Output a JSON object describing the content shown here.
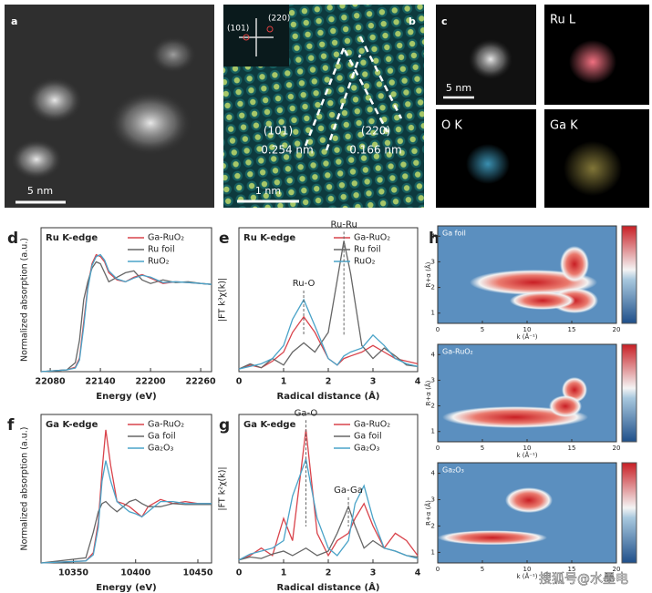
{
  "images": [
    {
      "label": "a",
      "scale_bar": "5 nm"
    },
    {
      "label": "b",
      "scale_bar": "1 nm",
      "fft_spots": [
        "(101)",
        "(220)"
      ],
      "planes": [
        {
          "index": "(101)",
          "spacing": "0.254 nm"
        },
        {
          "index": "(220)",
          "spacing": "0.166 nm"
        }
      ]
    },
    {
      "label": "c",
      "scale_bar": "5 nm",
      "maps": [
        "Ru L",
        "O K",
        "Ga K"
      ]
    }
  ],
  "chart_data": [
    {
      "label": "d",
      "type": "line",
      "title": "Ru K-edge",
      "xlabel": "Energy (eV)",
      "ylabel": "Normalized absorption (a.u.)",
      "xlim": [
        22069,
        22273
      ],
      "xticks": [
        22080,
        22140,
        22200,
        22260
      ],
      "ylim": [
        0,
        1.6
      ],
      "x": [
        22069,
        22100,
        22110,
        22115,
        22120,
        22125,
        22130,
        22135,
        22140,
        22145,
        22150,
        22160,
        22170,
        22180,
        22190,
        22200,
        22215,
        22230,
        22245,
        22260,
        22273
      ],
      "series": [
        {
          "name": "Ga-RuO₂",
          "color": "#d9434b",
          "values": [
            0.0,
            0.02,
            0.05,
            0.15,
            0.55,
            0.95,
            1.2,
            1.3,
            1.28,
            1.22,
            1.1,
            1.02,
            1.0,
            1.05,
            1.08,
            1.04,
            0.98,
            1.0,
            0.99,
            0.98,
            0.97
          ]
        },
        {
          "name": "Ru foil",
          "color": "#666666",
          "values": [
            0.0,
            0.02,
            0.1,
            0.35,
            0.8,
            1.0,
            1.15,
            1.22,
            1.2,
            1.1,
            1.0,
            1.05,
            1.1,
            1.12,
            1.02,
            0.98,
            1.02,
            0.99,
            1.0,
            0.98,
            0.97
          ]
        },
        {
          "name": "RuO₂",
          "color": "#4aa3c8",
          "values": [
            0.0,
            0.02,
            0.04,
            0.13,
            0.5,
            0.92,
            1.18,
            1.28,
            1.3,
            1.24,
            1.12,
            1.03,
            1.0,
            1.04,
            1.07,
            1.05,
            0.99,
            1.0,
            0.99,
            0.98,
            0.97
          ]
        }
      ]
    },
    {
      "label": "e",
      "type": "line",
      "title": "Ru K-edge",
      "xlabel": "Radical distance (Å)",
      "ylabel": "|FT k³χ(k)|",
      "xlim": [
        0,
        4
      ],
      "xticks": [
        0,
        1,
        2,
        3,
        4
      ],
      "ylim": [
        0,
        1.1
      ],
      "x": [
        0,
        0.25,
        0.5,
        0.75,
        1,
        1.2,
        1.45,
        1.7,
        2,
        2.2,
        2.35,
        2.5,
        2.75,
        3,
        3.25,
        3.5,
        3.75,
        4
      ],
      "series": [
        {
          "name": "Ga-RuO₂",
          "color": "#d9434b",
          "values": [
            0.02,
            0.05,
            0.03,
            0.08,
            0.15,
            0.3,
            0.42,
            0.3,
            0.1,
            0.05,
            0.1,
            0.12,
            0.15,
            0.2,
            0.15,
            0.1,
            0.08,
            0.06
          ]
        },
        {
          "name": "Ru foil",
          "color": "#666666",
          "values": [
            0.02,
            0.06,
            0.03,
            0.1,
            0.05,
            0.15,
            0.22,
            0.15,
            0.3,
            0.7,
            1.0,
            0.75,
            0.2,
            0.1,
            0.18,
            0.12,
            0.05,
            0.04
          ]
        },
        {
          "name": "RuO₂",
          "color": "#4aa3c8",
          "values": [
            0.02,
            0.04,
            0.06,
            0.1,
            0.2,
            0.4,
            0.55,
            0.35,
            0.1,
            0.05,
            0.12,
            0.15,
            0.18,
            0.28,
            0.2,
            0.1,
            0.06,
            0.04
          ]
        }
      ],
      "peaks": [
        {
          "label": "Ru-O",
          "x": 1.45
        },
        {
          "label": "Ru-Ru",
          "x": 2.35
        }
      ]
    },
    {
      "label": "f",
      "type": "line",
      "title": "Ga K-edge",
      "xlabel": "Energy (eV)",
      "ylabel": "Normalized absorption (a.u.)",
      "xlim": [
        10324,
        10461
      ],
      "xticks": [
        10350,
        10400,
        10450
      ],
      "ylim": [
        0,
        1.45
      ],
      "x": [
        10324,
        10360,
        10366,
        10370,
        10373,
        10376,
        10380,
        10385,
        10390,
        10395,
        10400,
        10405,
        10410,
        10420,
        10430,
        10440,
        10450,
        10461
      ],
      "series": [
        {
          "name": "Ga-RuO₂",
          "color": "#d9434b",
          "values": [
            0,
            0.02,
            0.1,
            0.4,
            0.9,
            1.3,
            0.95,
            0.6,
            0.58,
            0.55,
            0.5,
            0.45,
            0.55,
            0.62,
            0.58,
            0.6,
            0.58,
            0.58
          ]
        },
        {
          "name": "Ga foil",
          "color": "#666666",
          "values": [
            0,
            0.05,
            0.3,
            0.5,
            0.58,
            0.6,
            0.55,
            0.5,
            0.55,
            0.6,
            0.62,
            0.58,
            0.55,
            0.55,
            0.58,
            0.57,
            0.57,
            0.57
          ]
        },
        {
          "name": "Ga₂O₃",
          "color": "#4aa3c8",
          "values": [
            0,
            0.02,
            0.08,
            0.35,
            0.8,
            1.0,
            0.8,
            0.6,
            0.55,
            0.5,
            0.48,
            0.45,
            0.5,
            0.6,
            0.6,
            0.58,
            0.58,
            0.58
          ]
        }
      ]
    },
    {
      "label": "g",
      "type": "line",
      "title": "Ga K-edge",
      "xlabel": "Radical distance (Å)",
      "ylabel": "|FT k²χ(k)|",
      "xlim": [
        0,
        4
      ],
      "xticks": [
        0,
        1,
        2,
        3,
        4
      ],
      "ylim": [
        0,
        1.0
      ],
      "x": [
        0,
        0.25,
        0.5,
        0.75,
        1,
        1.2,
        1.5,
        1.75,
        2,
        2.2,
        2.45,
        2.6,
        2.8,
        3,
        3.25,
        3.5,
        3.75,
        4
      ],
      "series": [
        {
          "name": "Ga-RuO₂",
          "color": "#d9434b",
          "values": [
            0.02,
            0.05,
            0.1,
            0.05,
            0.3,
            0.15,
            0.9,
            0.2,
            0.05,
            0.15,
            0.2,
            0.3,
            0.4,
            0.25,
            0.1,
            0.2,
            0.15,
            0.05
          ]
        },
        {
          "name": "Ga foil",
          "color": "#666666",
          "values": [
            0.02,
            0.04,
            0.03,
            0.06,
            0.08,
            0.05,
            0.1,
            0.05,
            0.08,
            0.2,
            0.38,
            0.25,
            0.1,
            0.15,
            0.1,
            0.08,
            0.05,
            0.04
          ]
        },
        {
          "name": "Ga₂O₃",
          "color": "#4aa3c8",
          "values": [
            0.02,
            0.06,
            0.08,
            0.1,
            0.15,
            0.45,
            0.7,
            0.3,
            0.1,
            0.05,
            0.15,
            0.4,
            0.52,
            0.3,
            0.1,
            0.08,
            0.05,
            0.03
          ]
        }
      ],
      "peaks": [
        {
          "label": "Ga-O",
          "x": 1.5
        },
        {
          "label": "Ga-Ga",
          "x": 2.45
        }
      ]
    }
  ],
  "wavelet": {
    "label": "h",
    "titles": [
      "Ga foil",
      "Ga-RuO₂",
      "Ga₂O₃"
    ],
    "xlabel": "k (Å⁻¹)",
    "ylabel": "R+α (Å)",
    "xlim": [
      0,
      20
    ],
    "xticks": [
      0,
      5,
      10,
      15,
      20
    ],
    "ylim": [
      0.6,
      4.4
    ],
    "yticks": [
      1,
      2,
      3,
      4
    ]
  },
  "watermark": "搜狐号@水墨电"
}
